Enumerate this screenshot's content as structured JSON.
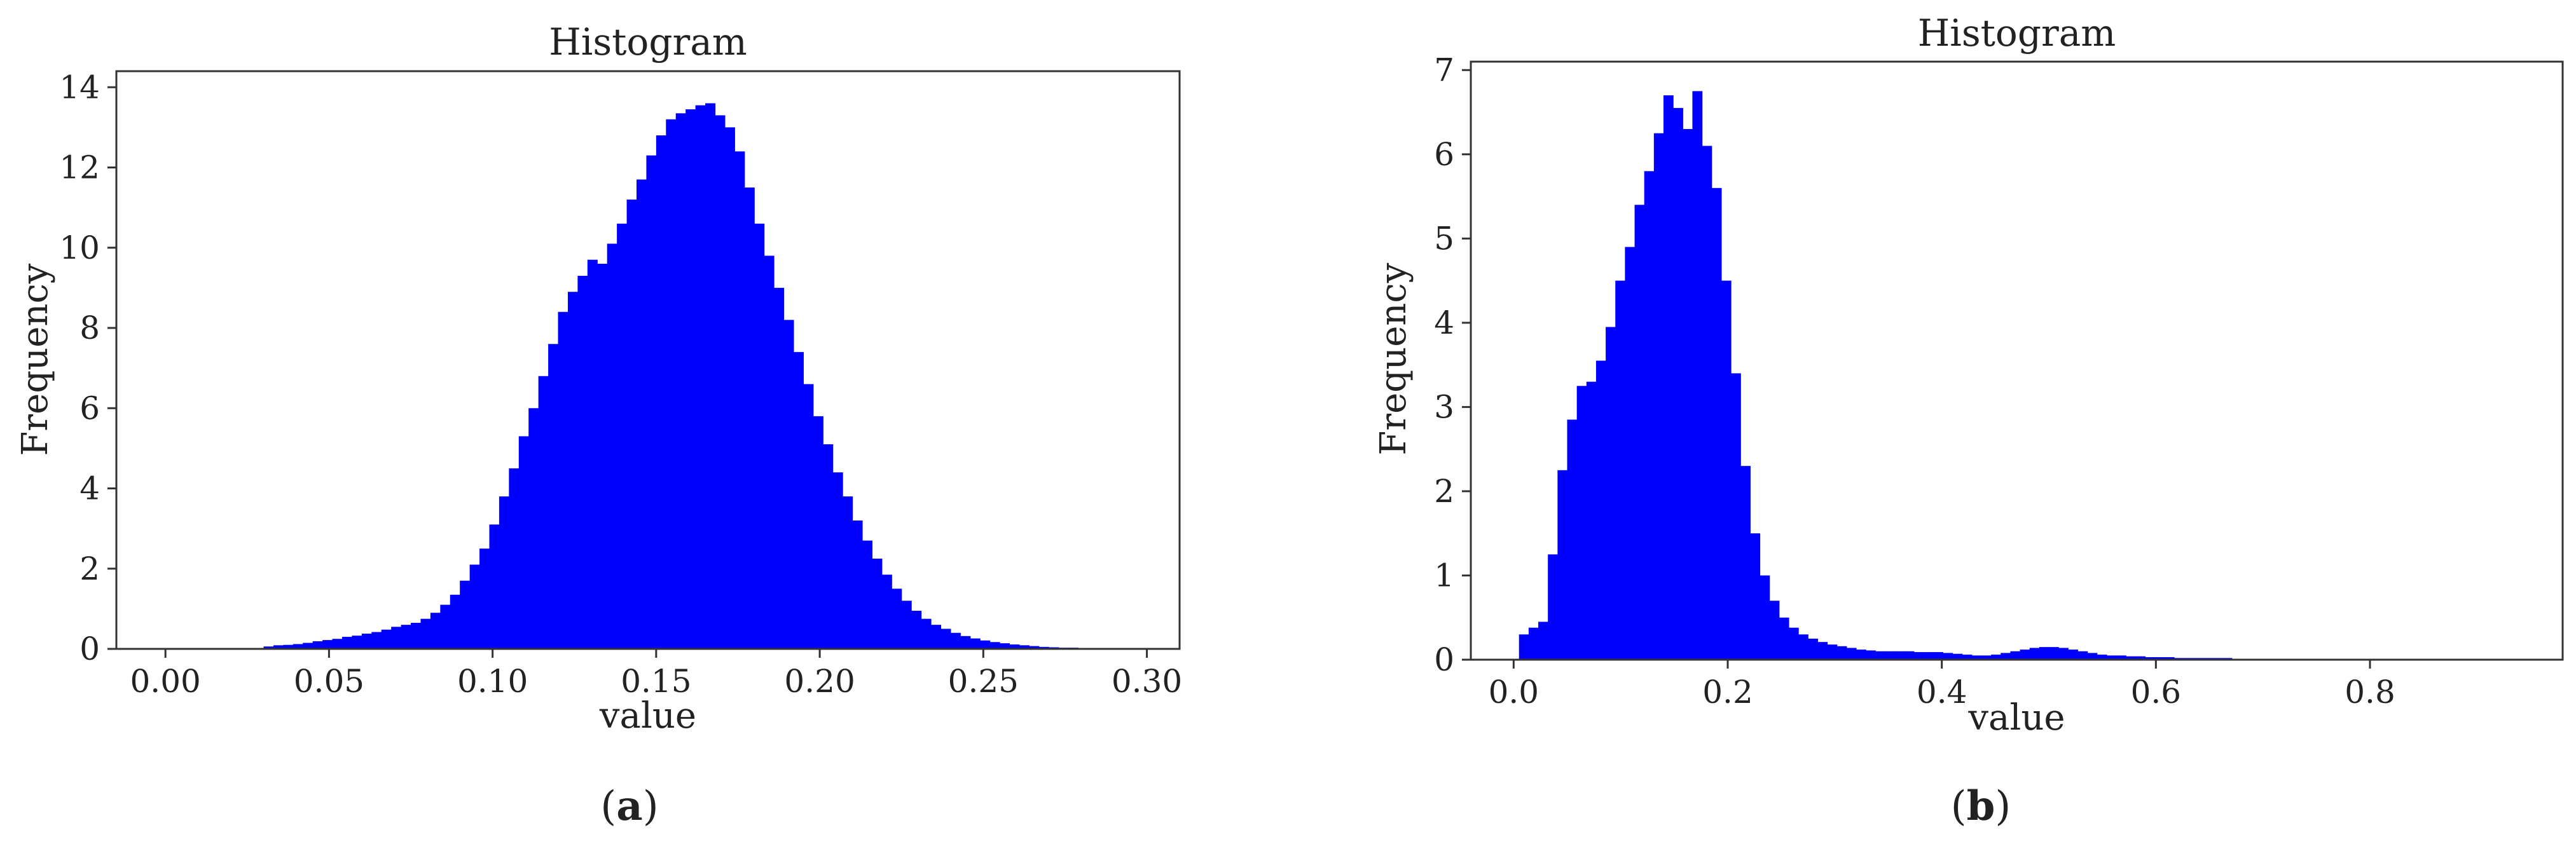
{
  "chart_data": [
    {
      "type": "bar",
      "panel_label": "a",
      "title": "Histogram",
      "xlabel": "value",
      "ylabel": "Frequency",
      "bar_color": "#0000FF",
      "xlim": [
        -0.015,
        0.31
      ],
      "ylim": [
        0,
        14.4
      ],
      "xticks": [
        0.0,
        0.05,
        0.1,
        0.15,
        0.2,
        0.25,
        0.3
      ],
      "xtick_labels": [
        "0.00",
        "0.05",
        "0.10",
        "0.15",
        "0.20",
        "0.25",
        "0.30"
      ],
      "yticks": [
        0,
        2,
        4,
        6,
        8,
        10,
        12,
        14
      ],
      "ytick_labels": [
        "0",
        "2",
        "4",
        "6",
        "8",
        "10",
        "12",
        "14"
      ],
      "bin_start": 0.0,
      "bin_width": 0.003,
      "values": [
        0,
        0,
        0,
        0,
        0,
        0,
        0,
        0,
        0,
        0.02,
        0.06,
        0.09,
        0.1,
        0.12,
        0.15,
        0.19,
        0.22,
        0.25,
        0.3,
        0.33,
        0.38,
        0.42,
        0.48,
        0.55,
        0.6,
        0.65,
        0.75,
        0.9,
        1.1,
        1.35,
        1.7,
        2.1,
        2.5,
        3.1,
        3.8,
        4.5,
        5.3,
        6.0,
        6.8,
        7.6,
        8.4,
        8.9,
        9.3,
        9.7,
        9.6,
        10.1,
        10.6,
        11.2,
        11.7,
        12.3,
        12.8,
        13.2,
        13.35,
        13.45,
        13.55,
        13.6,
        13.3,
        13.0,
        12.4,
        11.5,
        10.6,
        9.8,
        9.0,
        8.2,
        7.4,
        6.6,
        5.8,
        5.1,
        4.4,
        3.8,
        3.2,
        2.7,
        2.25,
        1.85,
        1.5,
        1.2,
        0.95,
        0.75,
        0.6,
        0.5,
        0.4,
        0.32,
        0.26,
        0.21,
        0.17,
        0.14,
        0.11,
        0.09,
        0.07,
        0.05,
        0.04,
        0.03,
        0.03,
        0.02,
        0.02,
        0.02,
        0.01,
        0.01,
        0.01,
        0
      ]
    },
    {
      "type": "bar",
      "panel_label": "b",
      "title": "Histogram",
      "xlabel": "value",
      "ylabel": "Frequency",
      "bar_color": "#0000FF",
      "xlim": [
        -0.04,
        0.98
      ],
      "ylim": [
        0,
        7.1
      ],
      "xticks": [
        0.0,
        0.2,
        0.4,
        0.6,
        0.8
      ],
      "xtick_labels": [
        "0.0",
        "0.2",
        "0.4",
        "0.6",
        "0.8"
      ],
      "yticks": [
        0,
        1,
        2,
        3,
        4,
        5,
        6,
        7
      ],
      "ytick_labels": [
        "0",
        "1",
        "2",
        "3",
        "4",
        "5",
        "6",
        "7"
      ],
      "bin_start": 0.005,
      "bin_width": 0.009,
      "values": [
        0.3,
        0.38,
        0.45,
        1.25,
        2.25,
        2.85,
        3.25,
        3.3,
        3.55,
        3.95,
        4.5,
        4.9,
        5.4,
        5.8,
        6.25,
        6.7,
        6.55,
        6.3,
        6.75,
        6.1,
        5.6,
        4.5,
        3.4,
        2.3,
        1.5,
        1.0,
        0.7,
        0.5,
        0.38,
        0.3,
        0.25,
        0.21,
        0.18,
        0.16,
        0.14,
        0.12,
        0.11,
        0.1,
        0.1,
        0.1,
        0.1,
        0.09,
        0.09,
        0.09,
        0.08,
        0.07,
        0.06,
        0.05,
        0.05,
        0.06,
        0.08,
        0.1,
        0.12,
        0.14,
        0.15,
        0.15,
        0.14,
        0.12,
        0.1,
        0.08,
        0.06,
        0.05,
        0.05,
        0.04,
        0.04,
        0.03,
        0.03,
        0.03,
        0.02,
        0.02,
        0.02,
        0.02,
        0.02,
        0.02,
        0.01,
        0.01,
        0.01,
        0.01,
        0.01,
        0.01,
        0.01,
        0.01,
        0.01,
        0.01,
        0.01,
        0.01,
        0.01,
        0.01,
        0.01,
        0.01,
        0.01
      ]
    }
  ]
}
